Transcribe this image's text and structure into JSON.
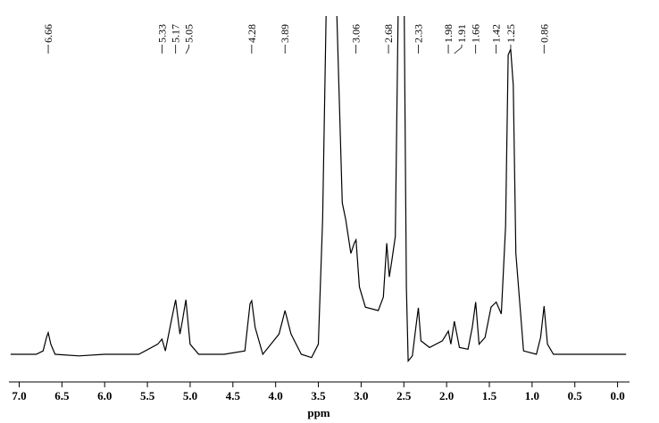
{
  "chart_data": {
    "type": "line",
    "color": "#000000",
    "x": [
      7.1,
      6.8,
      6.72,
      6.68,
      6.66,
      6.63,
      6.58,
      6.3,
      6.0,
      5.6,
      5.38,
      5.33,
      5.29,
      5.22,
      5.17,
      5.12,
      5.09,
      5.05,
      5.0,
      4.9,
      4.6,
      4.36,
      4.3,
      4.28,
      4.24,
      4.15,
      3.96,
      3.89,
      3.82,
      3.7,
      3.58,
      3.5,
      3.45,
      3.4,
      3.3,
      3.22,
      3.18,
      3.12,
      3.08,
      3.06,
      3.02,
      2.95,
      2.8,
      2.74,
      2.7,
      2.67,
      2.64,
      2.6,
      2.56,
      2.5,
      2.47,
      2.45,
      2.4,
      2.36,
      2.33,
      2.3,
      2.2,
      2.05,
      1.98,
      1.95,
      1.91,
      1.85,
      1.75,
      1.7,
      1.66,
      1.62,
      1.55,
      1.48,
      1.42,
      1.36,
      1.31,
      1.28,
      1.25,
      1.22,
      1.19,
      1.1,
      0.95,
      0.9,
      0.86,
      0.82,
      0.75,
      0.5,
      0.0,
      -0.1
    ],
    "values": [
      0,
      0,
      1,
      5,
      6.4,
      3,
      0,
      -0.5,
      0,
      0,
      3,
      4.5,
      1,
      10,
      16.2,
      6,
      10,
      16.2,
      3,
      0,
      0,
      1,
      15,
      15.9,
      8,
      0,
      6,
      13,
      6,
      0,
      -1,
      3,
      40,
      115,
      115,
      45,
      40,
      30,
      33,
      34,
      20,
      14,
      13,
      17,
      33,
      23,
      28,
      35,
      115,
      115,
      20,
      -2,
      -0.5,
      8,
      13.8,
      4,
      2,
      4,
      6.9,
      3,
      9.8,
      2,
      1.5,
      8,
      15.5,
      3,
      5,
      14,
      15.5,
      12,
      38,
      89,
      90.7,
      80,
      30,
      1,
      0,
      5,
      14.3,
      3,
      0,
      0,
      0,
      0
    ],
    "xlim": [
      7.12,
      -0.14
    ],
    "ylim": [
      -2,
      100
    ],
    "xticks": [
      {
        "value": 7,
        "label": "7.0"
      },
      6.5,
      {
        "value": 6,
        "label": "6.0"
      },
      5.5,
      {
        "value": 5,
        "label": "5.0"
      },
      4.5,
      {
        "value": 4,
        "label": "4.0"
      },
      3.5,
      {
        "value": 3,
        "label": "3.0"
      },
      2.5,
      {
        "value": 2,
        "label": "2.0"
      },
      1.5,
      {
        "value": 1,
        "label": "1.0"
      },
      0.5,
      {
        "value": 0,
        "label": "0.0"
      }
    ],
    "xlabel": "ppm",
    "peak_labels": [
      6.66,
      5.33,
      5.17,
      5.05,
      4.28,
      3.89,
      3.06,
      2.68,
      2.33,
      1.98,
      1.91,
      1.66,
      1.42,
      1.25,
      0.86
    ]
  }
}
